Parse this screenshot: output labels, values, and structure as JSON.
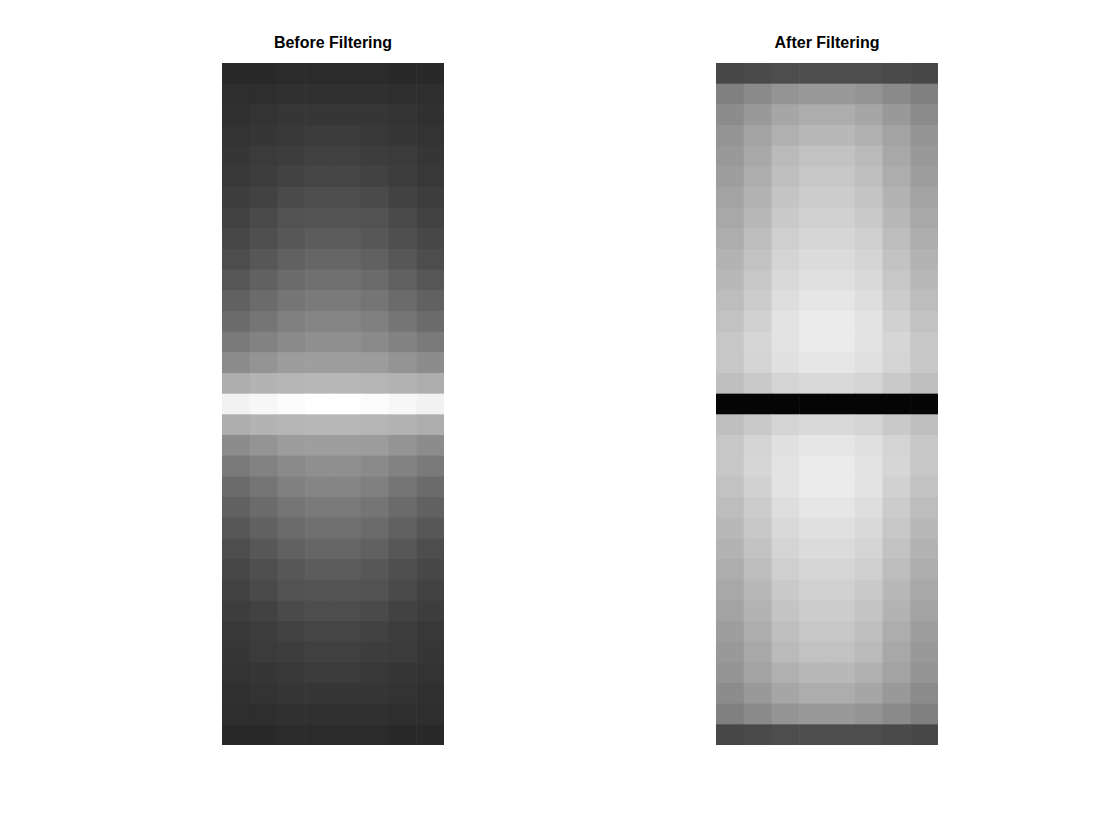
{
  "chart_data": [
    {
      "type": "heatmap",
      "title": "Before Filtering",
      "tick_labels": false,
      "zlim": [
        0,
        1
      ],
      "cells": [
        [
          0.16,
          0.16,
          0.17,
          0.17,
          0.17,
          0.17,
          0.16,
          0.16
        ],
        [
          0.18,
          0.18,
          0.19,
          0.19,
          0.19,
          0.19,
          0.18,
          0.18
        ],
        [
          0.19,
          0.2,
          0.21,
          0.21,
          0.21,
          0.21,
          0.2,
          0.19
        ],
        [
          0.2,
          0.21,
          0.22,
          0.23,
          0.23,
          0.22,
          0.21,
          0.2
        ],
        [
          0.21,
          0.23,
          0.24,
          0.25,
          0.25,
          0.24,
          0.23,
          0.21
        ],
        [
          0.22,
          0.24,
          0.26,
          0.27,
          0.27,
          0.26,
          0.24,
          0.22
        ],
        [
          0.24,
          0.26,
          0.29,
          0.3,
          0.3,
          0.29,
          0.26,
          0.24
        ],
        [
          0.26,
          0.29,
          0.32,
          0.33,
          0.33,
          0.32,
          0.29,
          0.26
        ],
        [
          0.28,
          0.31,
          0.34,
          0.36,
          0.36,
          0.34,
          0.31,
          0.28
        ],
        [
          0.3,
          0.34,
          0.38,
          0.4,
          0.4,
          0.38,
          0.34,
          0.3
        ],
        [
          0.34,
          0.38,
          0.42,
          0.44,
          0.44,
          0.42,
          0.38,
          0.34
        ],
        [
          0.38,
          0.42,
          0.46,
          0.48,
          0.48,
          0.46,
          0.42,
          0.38
        ],
        [
          0.42,
          0.46,
          0.5,
          0.52,
          0.52,
          0.5,
          0.46,
          0.42
        ],
        [
          0.48,
          0.51,
          0.54,
          0.56,
          0.56,
          0.54,
          0.51,
          0.48
        ],
        [
          0.55,
          0.58,
          0.61,
          0.62,
          0.62,
          0.61,
          0.58,
          0.55
        ],
        [
          0.68,
          0.7,
          0.71,
          0.72,
          0.72,
          0.71,
          0.7,
          0.68
        ],
        [
          0.95,
          0.97,
          0.99,
          1,
          1,
          0.99,
          0.97,
          0.95
        ],
        [
          0.68,
          0.7,
          0.71,
          0.72,
          0.72,
          0.71,
          0.7,
          0.68
        ],
        [
          0.55,
          0.58,
          0.61,
          0.62,
          0.62,
          0.61,
          0.58,
          0.55
        ],
        [
          0.48,
          0.51,
          0.54,
          0.56,
          0.56,
          0.54,
          0.51,
          0.48
        ],
        [
          0.42,
          0.46,
          0.5,
          0.52,
          0.52,
          0.5,
          0.46,
          0.42
        ],
        [
          0.38,
          0.42,
          0.46,
          0.48,
          0.48,
          0.46,
          0.42,
          0.38
        ],
        [
          0.34,
          0.38,
          0.42,
          0.44,
          0.44,
          0.42,
          0.38,
          0.34
        ],
        [
          0.3,
          0.34,
          0.38,
          0.4,
          0.4,
          0.38,
          0.34,
          0.3
        ],
        [
          0.28,
          0.31,
          0.34,
          0.36,
          0.36,
          0.34,
          0.31,
          0.28
        ],
        [
          0.26,
          0.29,
          0.32,
          0.33,
          0.33,
          0.32,
          0.29,
          0.26
        ],
        [
          0.24,
          0.26,
          0.29,
          0.3,
          0.3,
          0.29,
          0.26,
          0.24
        ],
        [
          0.22,
          0.24,
          0.26,
          0.27,
          0.27,
          0.26,
          0.24,
          0.22
        ],
        [
          0.21,
          0.23,
          0.24,
          0.25,
          0.25,
          0.24,
          0.23,
          0.21
        ],
        [
          0.2,
          0.21,
          0.22,
          0.23,
          0.23,
          0.22,
          0.21,
          0.2
        ],
        [
          0.19,
          0.2,
          0.21,
          0.21,
          0.21,
          0.21,
          0.2,
          0.19
        ],
        [
          0.18,
          0.18,
          0.19,
          0.19,
          0.19,
          0.19,
          0.18,
          0.18
        ],
        [
          0.16,
          0.16,
          0.17,
          0.17,
          0.17,
          0.17,
          0.16,
          0.16
        ]
      ]
    },
    {
      "type": "heatmap",
      "title": "After Filtering",
      "tick_labels": false,
      "zlim": [
        0,
        1
      ],
      "cells": [
        [
          0.28,
          0.29,
          0.3,
          0.3,
          0.3,
          0.3,
          0.29,
          0.28
        ],
        [
          0.5,
          0.54,
          0.58,
          0.6,
          0.6,
          0.58,
          0.54,
          0.5
        ],
        [
          0.55,
          0.6,
          0.65,
          0.68,
          0.68,
          0.65,
          0.6,
          0.55
        ],
        [
          0.58,
          0.64,
          0.69,
          0.72,
          0.72,
          0.69,
          0.64,
          0.58
        ],
        [
          0.6,
          0.66,
          0.73,
          0.76,
          0.76,
          0.73,
          0.66,
          0.6
        ],
        [
          0.62,
          0.68,
          0.75,
          0.78,
          0.78,
          0.75,
          0.68,
          0.62
        ],
        [
          0.64,
          0.7,
          0.77,
          0.8,
          0.8,
          0.77,
          0.7,
          0.64
        ],
        [
          0.66,
          0.72,
          0.79,
          0.82,
          0.82,
          0.79,
          0.72,
          0.66
        ],
        [
          0.68,
          0.74,
          0.81,
          0.84,
          0.84,
          0.81,
          0.74,
          0.68
        ],
        [
          0.7,
          0.76,
          0.83,
          0.86,
          0.86,
          0.83,
          0.76,
          0.7
        ],
        [
          0.72,
          0.78,
          0.85,
          0.88,
          0.88,
          0.85,
          0.78,
          0.72
        ],
        [
          0.74,
          0.8,
          0.87,
          0.9,
          0.9,
          0.87,
          0.8,
          0.74
        ],
        [
          0.76,
          0.82,
          0.89,
          0.92,
          0.92,
          0.89,
          0.82,
          0.76
        ],
        [
          0.78,
          0.84,
          0.89,
          0.92,
          0.92,
          0.89,
          0.84,
          0.78
        ],
        [
          0.78,
          0.83,
          0.88,
          0.9,
          0.9,
          0.88,
          0.83,
          0.78
        ],
        [
          0.75,
          0.79,
          0.83,
          0.85,
          0.85,
          0.83,
          0.79,
          0.75
        ],
        [
          0.02,
          0.02,
          0.02,
          0.02,
          0.02,
          0.02,
          0.02,
          0.02
        ],
        [
          0.75,
          0.79,
          0.83,
          0.85,
          0.85,
          0.83,
          0.79,
          0.75
        ],
        [
          0.78,
          0.83,
          0.88,
          0.9,
          0.9,
          0.88,
          0.83,
          0.78
        ],
        [
          0.78,
          0.84,
          0.89,
          0.92,
          0.92,
          0.89,
          0.84,
          0.78
        ],
        [
          0.76,
          0.82,
          0.89,
          0.92,
          0.92,
          0.89,
          0.82,
          0.76
        ],
        [
          0.74,
          0.8,
          0.87,
          0.9,
          0.9,
          0.87,
          0.8,
          0.74
        ],
        [
          0.72,
          0.78,
          0.85,
          0.88,
          0.88,
          0.85,
          0.78,
          0.72
        ],
        [
          0.7,
          0.76,
          0.83,
          0.86,
          0.86,
          0.83,
          0.76,
          0.7
        ],
        [
          0.68,
          0.74,
          0.81,
          0.84,
          0.84,
          0.81,
          0.74,
          0.68
        ],
        [
          0.66,
          0.72,
          0.79,
          0.82,
          0.82,
          0.79,
          0.72,
          0.66
        ],
        [
          0.64,
          0.7,
          0.77,
          0.8,
          0.8,
          0.77,
          0.7,
          0.64
        ],
        [
          0.62,
          0.68,
          0.75,
          0.78,
          0.78,
          0.75,
          0.68,
          0.62
        ],
        [
          0.6,
          0.66,
          0.73,
          0.76,
          0.76,
          0.73,
          0.66,
          0.6
        ],
        [
          0.58,
          0.64,
          0.69,
          0.72,
          0.72,
          0.69,
          0.64,
          0.58
        ],
        [
          0.55,
          0.6,
          0.65,
          0.68,
          0.68,
          0.65,
          0.6,
          0.55
        ],
        [
          0.5,
          0.54,
          0.58,
          0.6,
          0.6,
          0.58,
          0.54,
          0.5
        ],
        [
          0.28,
          0.29,
          0.3,
          0.3,
          0.3,
          0.3,
          0.29,
          0.28
        ]
      ]
    }
  ]
}
